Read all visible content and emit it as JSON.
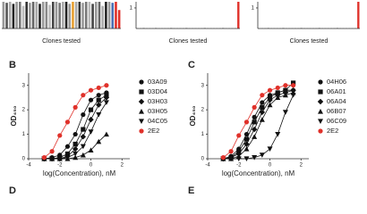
{
  "panel_labels": [
    "B",
    "C",
    "D",
    "E"
  ],
  "chart_data": [
    {
      "type": "bar",
      "x_label": "Clones tested",
      "ylim": [
        0,
        1.3
      ],
      "values": [
        1.3,
        1.25,
        1.3,
        1.2,
        1.3,
        1.3,
        1.1,
        1.3,
        1.25,
        1.3,
        1.3,
        1.2,
        1.3,
        1.3,
        1.15,
        1.3,
        1.3,
        1.25,
        1.3,
        1.3,
        1.2,
        1.3,
        1.3,
        1.3,
        1.25,
        1.3,
        1.3,
        1.2,
        1.3,
        1.3,
        1.1,
        1.3,
        1.3,
        1.25,
        1.3,
        0.9
      ],
      "colors": [
        "#999",
        "#555",
        "#aaa",
        "#222",
        "#999",
        "#777",
        "#bbb",
        "#333",
        "#999",
        "#666",
        "#aaa",
        "#222",
        "#999",
        "#888",
        "#bbb",
        "#444",
        "#999",
        "#777",
        "#aaa",
        "#222",
        "#999",
        "#e8a030",
        "#aaa",
        "#333",
        "#999",
        "#777",
        "#bbb",
        "#444",
        "#999",
        "#666",
        "#aaa",
        "#222",
        "#999",
        "#4a6fb5",
        "#e0312a",
        "#e0312a"
      ]
    },
    {
      "type": "bar",
      "x_label": "Clones tested",
      "ylim": [
        0,
        1.3
      ],
      "yticks": [
        1
      ],
      "values": [
        0.02,
        0.02,
        0.03,
        0.02,
        0.02,
        0.02,
        0.03,
        0.02,
        0.02,
        0.02,
        0.02,
        0.03,
        0.02,
        0.02,
        0.02,
        0.02,
        0.03,
        0.02,
        0.02,
        0.02,
        0.02,
        0.02,
        0.03,
        0.02,
        0.02,
        0.02,
        0.02,
        0.02,
        0.03,
        0.02,
        0.02,
        0.02,
        0.02,
        1.3
      ],
      "colors": [
        "#999",
        "#999",
        "#999",
        "#999",
        "#999",
        "#999",
        "#999",
        "#999",
        "#999",
        "#999",
        "#999",
        "#999",
        "#999",
        "#999",
        "#999",
        "#999",
        "#999",
        "#999",
        "#999",
        "#999",
        "#999",
        "#999",
        "#999",
        "#999",
        "#999",
        "#999",
        "#999",
        "#999",
        "#999",
        "#999",
        "#999",
        "#999",
        "#999",
        "#e0312a"
      ]
    },
    {
      "type": "bar",
      "x_label": "Clones tested",
      "ylim": [
        0,
        1.3
      ],
      "yticks": [
        1
      ],
      "values": [
        0.02,
        0.02,
        0.02,
        0.03,
        0.02,
        0.02,
        0.02,
        0.02,
        0.03,
        0.02,
        0.02,
        0.02,
        0.02,
        0.02,
        0.03,
        0.02,
        0.02,
        0.02,
        0.02,
        0.02,
        0.03,
        0.02,
        0.02,
        0.02,
        0.02,
        0.02,
        0.03,
        0.02,
        0.02,
        0.02,
        0.02,
        0.02,
        0.02,
        1.3
      ],
      "colors": [
        "#999",
        "#999",
        "#999",
        "#999",
        "#999",
        "#999",
        "#999",
        "#999",
        "#999",
        "#999",
        "#999",
        "#999",
        "#999",
        "#999",
        "#999",
        "#999",
        "#999",
        "#999",
        "#999",
        "#999",
        "#999",
        "#999",
        "#999",
        "#999",
        "#999",
        "#999",
        "#999",
        "#999",
        "#999",
        "#999",
        "#999",
        "#999",
        "#999",
        "#e0312a"
      ]
    },
    {
      "type": "line",
      "x_label": "log(Concentration), nM",
      "y_label": "OD₄₅₀",
      "xlim": [
        -4,
        2.5
      ],
      "xticks": [
        -4,
        -2,
        0,
        2
      ],
      "ylim": [
        0,
        3.5
      ],
      "yticks": [
        0,
        1,
        2,
        3
      ],
      "x": [
        -3,
        -2.5,
        -2,
        -1.5,
        -1,
        -0.5,
        0,
        0.5,
        1
      ],
      "series": [
        {
          "name": "03A09",
          "color": "#111",
          "marker": "circle",
          "values": [
            0,
            0.05,
            0.15,
            0.5,
            1.0,
            1.8,
            2.4,
            2.6,
            2.7
          ]
        },
        {
          "name": "03D04",
          "color": "#111",
          "marker": "square",
          "values": [
            0,
            0,
            0.05,
            0.2,
            0.6,
            1.2,
            2.0,
            2.4,
            2.6
          ]
        },
        {
          "name": "03H03",
          "color": "#111",
          "marker": "diamond",
          "values": [
            0,
            0,
            0,
            0.1,
            0.4,
            0.9,
            1.6,
            2.2,
            2.5
          ]
        },
        {
          "name": "03H05",
          "color": "#111",
          "marker": "triangle-up",
          "values": [
            0,
            0,
            0,
            0,
            0.05,
            0.15,
            0.35,
            0.7,
            1.0
          ]
        },
        {
          "name": "04C05",
          "color": "#111",
          "marker": "triangle-down",
          "values": [
            0,
            0,
            0,
            0.05,
            0.2,
            0.5,
            1.1,
            1.8,
            2.3
          ]
        },
        {
          "name": "2E2",
          "color": "#e0312a",
          "marker": "circle",
          "values": [
            0.05,
            0.3,
            0.95,
            1.5,
            2.1,
            2.6,
            2.8,
            2.9,
            3.0
          ]
        }
      ]
    },
    {
      "type": "line",
      "x_label": "log(Concentration), nM",
      "y_label": "OD₄₅₀",
      "xlim": [
        -4,
        2.5
      ],
      "xticks": [
        -4,
        -2,
        0,
        2
      ],
      "ylim": [
        0,
        3.5
      ],
      "yticks": [
        0,
        1,
        2,
        3
      ],
      "x": [
        -3,
        -2.5,
        -2,
        -1.5,
        -1,
        -0.5,
        0,
        0.5,
        1,
        1.5
      ],
      "series": [
        {
          "name": "04H06",
          "color": "#111",
          "marker": "circle",
          "values": [
            0,
            0.1,
            0.4,
            1.0,
            1.7,
            2.3,
            2.6,
            2.7,
            2.8,
            2.8
          ]
        },
        {
          "name": "06A01",
          "color": "#111",
          "marker": "square",
          "values": [
            0,
            0.05,
            0.3,
            0.8,
            1.5,
            2.1,
            2.5,
            2.7,
            2.8,
            3.1
          ]
        },
        {
          "name": "06A04",
          "color": "#111",
          "marker": "diamond",
          "values": [
            0,
            0.05,
            0.2,
            0.6,
            1.2,
            1.9,
            2.4,
            2.6,
            2.7,
            2.8
          ]
        },
        {
          "name": "06B07",
          "color": "#111",
          "marker": "triangle-up",
          "values": [
            0,
            0,
            0.1,
            0.4,
            0.9,
            1.6,
            2.2,
            2.5,
            2.6,
            2.7
          ]
        },
        {
          "name": "06C09",
          "color": "#111",
          "marker": "triangle-down",
          "values": [
            0,
            0,
            0,
            0,
            0.05,
            0.15,
            0.4,
            1.0,
            1.9,
            2.6
          ]
        },
        {
          "name": "2E2",
          "color": "#e0312a",
          "marker": "circle",
          "values": [
            0.05,
            0.3,
            0.95,
            1.5,
            2.1,
            2.6,
            2.8,
            2.9,
            3.0,
            3.0
          ]
        }
      ]
    }
  ]
}
